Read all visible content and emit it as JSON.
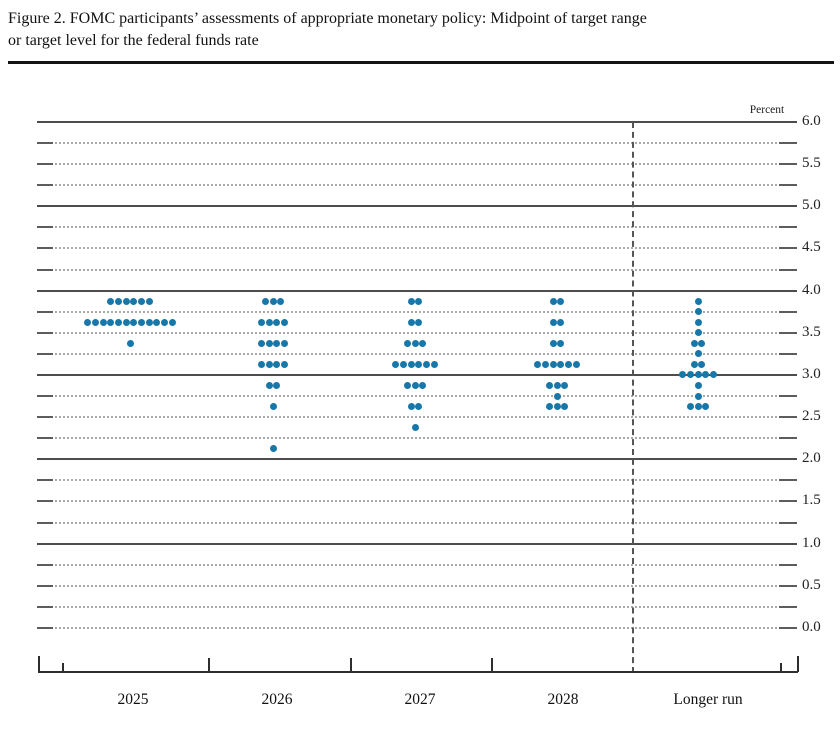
{
  "figure": {
    "title_line1": "Figure 2. FOMC participants’ assessments of appropriate monetary policy: Midpoint of target range",
    "title_line2": "or target level for the federal funds rate"
  },
  "chart_data": {
    "type": "scatter",
    "subtype": "fomc-dot-plot",
    "title": "Figure 2. FOMC participants’ assessments of appropriate monetary policy: Midpoint of target range or target level for the federal funds rate",
    "ylabel": "Percent",
    "xlabel": "",
    "ylim": [
      0.0,
      6.0
    ],
    "y_major_step": 0.5,
    "y_minor_step": 0.25,
    "grid": "solid horizontal lines at whole percents, dotted lines at quarter-percent intervals",
    "y_axis_labels": [
      "6.0",
      "5.5",
      "5.0",
      "4.5",
      "4.0",
      "3.5",
      "3.0",
      "2.5",
      "2.0",
      "1.5",
      "1.0",
      "0.5",
      "0.0"
    ],
    "y_axis_label_values": [
      6.0,
      5.5,
      5.0,
      4.5,
      4.0,
      3.5,
      3.0,
      2.5,
      2.0,
      1.5,
      1.0,
      0.5,
      0.0
    ],
    "categories": [
      "2025",
      "2026",
      "2027",
      "2028",
      "Longer run"
    ],
    "separator_note": "dashed vertical line separates 2028 from Longer run",
    "dot_color": "#1777A8",
    "participants_per_year": 19,
    "series": [
      {
        "name": "2025",
        "dots": [
          {
            "rate": 3.875,
            "count": 6
          },
          {
            "rate": 3.625,
            "count": 12
          },
          {
            "rate": 3.375,
            "count": 1
          }
        ]
      },
      {
        "name": "2026",
        "dots": [
          {
            "rate": 3.875,
            "count": 3
          },
          {
            "rate": 3.625,
            "count": 4
          },
          {
            "rate": 3.375,
            "count": 4
          },
          {
            "rate": 3.125,
            "count": 4
          },
          {
            "rate": 2.875,
            "count": 2
          },
          {
            "rate": 2.625,
            "count": 1
          },
          {
            "rate": 2.125,
            "count": 1
          }
        ]
      },
      {
        "name": "2027",
        "dots": [
          {
            "rate": 3.875,
            "count": 2
          },
          {
            "rate": 3.625,
            "count": 2
          },
          {
            "rate": 3.375,
            "count": 3
          },
          {
            "rate": 3.125,
            "count": 6
          },
          {
            "rate": 2.875,
            "count": 3
          },
          {
            "rate": 2.625,
            "count": 2
          },
          {
            "rate": 2.375,
            "count": 1
          }
        ]
      },
      {
        "name": "2028",
        "dots": [
          {
            "rate": 3.875,
            "count": 2
          },
          {
            "rate": 3.625,
            "count": 2
          },
          {
            "rate": 3.375,
            "count": 2
          },
          {
            "rate": 3.125,
            "count": 6
          },
          {
            "rate": 2.875,
            "count": 3
          },
          {
            "rate": 2.75,
            "count": 1
          },
          {
            "rate": 2.625,
            "count": 3
          }
        ]
      },
      {
        "name": "Longer run",
        "dots": [
          {
            "rate": 3.875,
            "count": 1
          },
          {
            "rate": 3.75,
            "count": 1
          },
          {
            "rate": 3.625,
            "count": 1
          },
          {
            "rate": 3.5,
            "count": 1
          },
          {
            "rate": 3.375,
            "count": 2
          },
          {
            "rate": 3.25,
            "count": 1
          },
          {
            "rate": 3.125,
            "count": 2
          },
          {
            "rate": 3.0,
            "count": 5
          },
          {
            "rate": 2.875,
            "count": 1
          },
          {
            "rate": 2.75,
            "count": 1
          },
          {
            "rate": 2.625,
            "count": 3
          }
        ]
      }
    ]
  }
}
